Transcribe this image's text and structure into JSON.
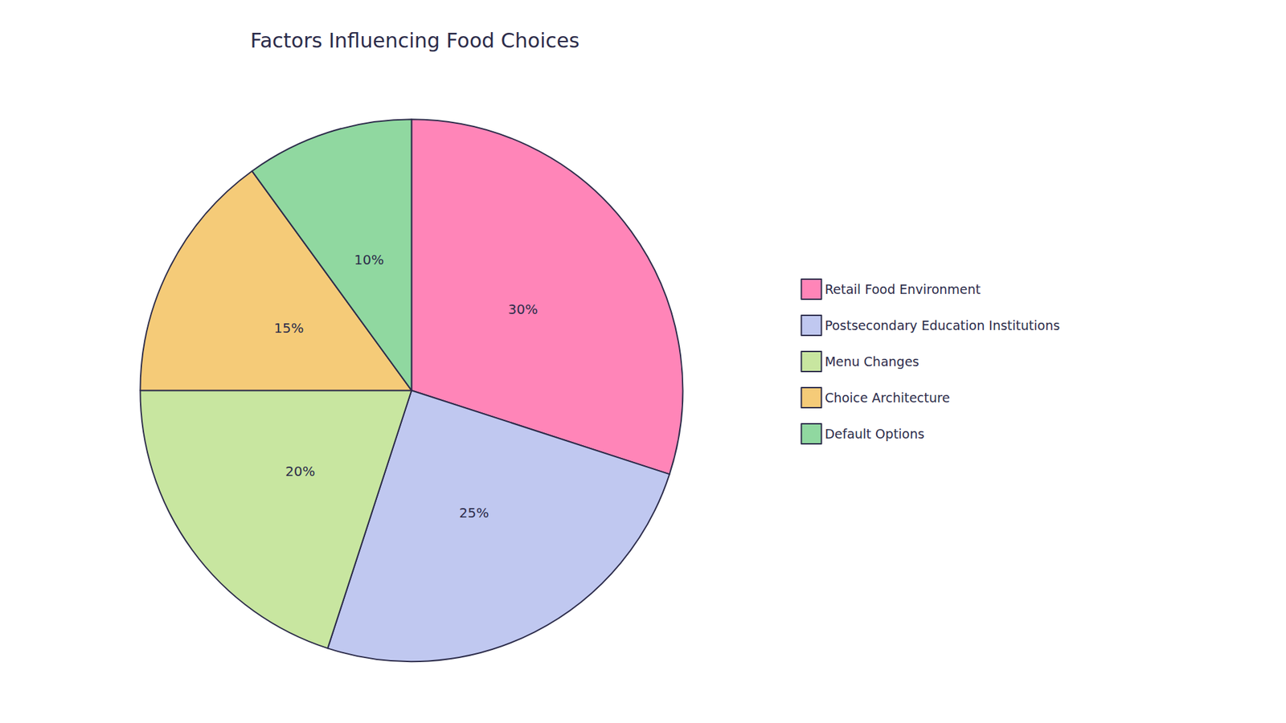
{
  "chart_data": {
    "type": "pie",
    "title": "Factors Influencing Food Choices",
    "categories": [
      "Retail Food Environment",
      "Postsecondary Education Institutions",
      "Menu Changes",
      "Choice Architecture",
      "Default Options"
    ],
    "values": [
      30,
      25,
      20,
      15,
      10
    ],
    "value_labels": [
      "30%",
      "25%",
      "20%",
      "15%",
      "10%"
    ],
    "colors": [
      "#FF85B8",
      "#C0C8F0",
      "#C8E6A0",
      "#F5CB78",
      "#90D8A0"
    ],
    "data_labels": true,
    "legend": "right"
  }
}
